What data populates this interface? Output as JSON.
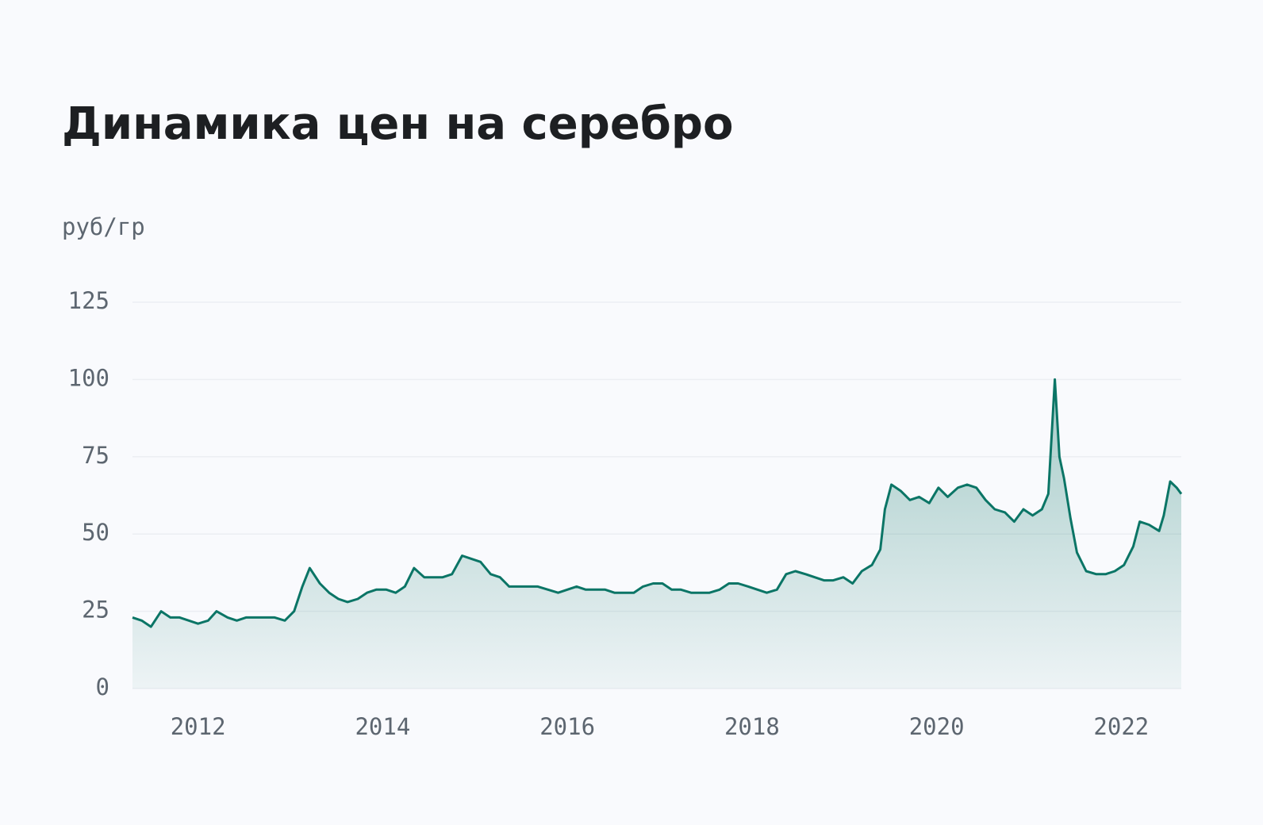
{
  "chart_data": {
    "type": "area",
    "title": "Динамика цен на серебро",
    "y_label": "руб/гр",
    "color": "#0b7566",
    "x": [
      2011.29,
      2011.39,
      2011.49,
      2011.6,
      2011.7,
      2011.8,
      2011.9,
      2012.0,
      2012.11,
      2012.2,
      2012.32,
      2012.42,
      2012.52,
      2012.63,
      2012.73,
      2012.83,
      2012.94,
      2013.04,
      2013.13,
      2013.21,
      2013.32,
      2013.42,
      2013.52,
      2013.62,
      2013.73,
      2013.83,
      2013.93,
      2014.04,
      2014.14,
      2014.24,
      2014.34,
      2014.45,
      2014.55,
      2014.65,
      2014.75,
      2014.86,
      2014.96,
      2015.06,
      2015.17,
      2015.27,
      2015.37,
      2015.48,
      2015.58,
      2015.68,
      2015.79,
      2015.9,
      2016.0,
      2016.1,
      2016.2,
      2016.3,
      2016.41,
      2016.51,
      2016.62,
      2016.72,
      2016.82,
      2016.93,
      2017.03,
      2017.13,
      2017.23,
      2017.34,
      2017.44,
      2017.54,
      2017.65,
      2017.75,
      2017.85,
      2017.96,
      2018.06,
      2018.16,
      2018.27,
      2018.37,
      2018.47,
      2018.58,
      2018.68,
      2018.78,
      2018.88,
      2018.99,
      2019.09,
      2019.19,
      2019.3,
      2019.39,
      2019.44,
      2019.51,
      2019.61,
      2019.71,
      2019.81,
      2019.92,
      2020.02,
      2020.12,
      2020.23,
      2020.33,
      2020.43,
      2020.53,
      2020.63,
      2020.74,
      2020.84,
      2020.94,
      2021.04,
      2021.14,
      2021.21,
      2021.28,
      2021.33,
      2021.38,
      2021.45,
      2021.52,
      2021.62,
      2021.73,
      2021.83,
      2021.93,
      2022.03,
      2022.13,
      2022.2,
      2022.3,
      2022.41,
      2022.46,
      2022.53,
      2022.6,
      2022.65
    ],
    "values": [
      23,
      22,
      20,
      25,
      23,
      23,
      22,
      21,
      22,
      25,
      23,
      22,
      23,
      23,
      23,
      23,
      22,
      25,
      33,
      39,
      34,
      31,
      29,
      28,
      29,
      31,
      32,
      32,
      31,
      33,
      39,
      36,
      36,
      36,
      37,
      43,
      42,
      41,
      37,
      36,
      33,
      33,
      33,
      33,
      32,
      31,
      32,
      33,
      32,
      32,
      32,
      31,
      31,
      31,
      33,
      34,
      34,
      32,
      32,
      31,
      31,
      31,
      32,
      34,
      34,
      33,
      32,
      31,
      32,
      37,
      38,
      37,
      36,
      35,
      35,
      36,
      34,
      38,
      40,
      45,
      58,
      66,
      64,
      61,
      62,
      60,
      65,
      62,
      65,
      66,
      65,
      61,
      58,
      57,
      54,
      58,
      56,
      58,
      63,
      100,
      75,
      68,
      55,
      44,
      38,
      37,
      37,
      38,
      40,
      46,
      54,
      53,
      51,
      56,
      67,
      65,
      63
    ],
    "xlim": [
      2011.29,
      2022.65
    ],
    "xticks": [
      2012,
      2014,
      2016,
      2018,
      2020,
      2022
    ],
    "ylim": [
      0,
      125
    ],
    "yticks": [
      0,
      25,
      50,
      75,
      100,
      125
    ],
    "grid": true
  }
}
